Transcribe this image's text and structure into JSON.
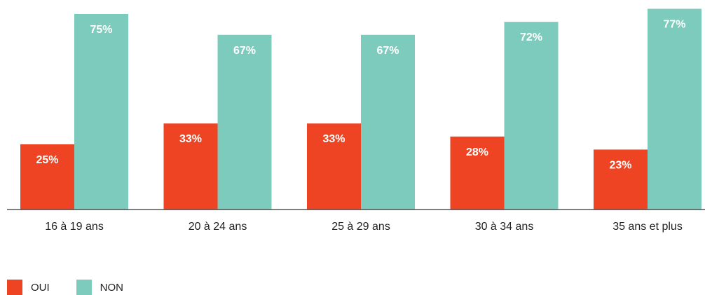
{
  "chart_data": {
    "type": "bar",
    "categories": [
      "16 à 19 ans",
      "20 à 24 ans",
      "25 à 29 ans",
      "30 à 34 ans",
      "35 ans et plus"
    ],
    "series": [
      {
        "name": "OUI",
        "values": [
          25,
          33,
          33,
          28,
          23
        ],
        "labels": [
          "25%",
          "33%",
          "33%",
          "28%",
          "23%"
        ],
        "color": "#EE4423"
      },
      {
        "name": "NON",
        "values": [
          75,
          67,
          67,
          72,
          77
        ],
        "labels": [
          "75%",
          "67%",
          "67%",
          "72%",
          "77%"
        ],
        "color": "#7DCBBC"
      }
    ],
    "ylim": [
      0,
      100
    ],
    "grid": false,
    "legend_position": "bottom-left"
  }
}
